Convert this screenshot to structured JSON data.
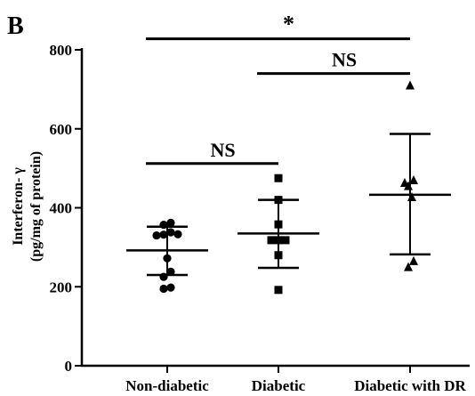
{
  "panel_label": "B",
  "chart_data": {
    "type": "scatter",
    "title": "",
    "ylabel_line1": "Interferon- γ",
    "ylabel_line2": "(pg/mg of protein)",
    "xlabel": "",
    "categories": [
      "Non-diabetic",
      "Diabetic",
      "Diabetic with DR"
    ],
    "ylim": [
      0,
      800
    ],
    "yticks": [
      0,
      200,
      400,
      600,
      800
    ],
    "grid": false,
    "series": [
      {
        "marker": "circle",
        "points": [
          {
            "dx": -0.1,
            "y": 357
          },
          {
            "dx": 0.1,
            "y": 362
          },
          {
            "dx": -0.3,
            "y": 330
          },
          {
            "dx": -0.1,
            "y": 332
          },
          {
            "dx": 0.1,
            "y": 338
          },
          {
            "dx": 0.3,
            "y": 333
          },
          {
            "dx": 0.0,
            "y": 272
          },
          {
            "dx": -0.1,
            "y": 225
          },
          {
            "dx": 0.1,
            "y": 238
          },
          {
            "dx": -0.1,
            "y": 195
          },
          {
            "dx": 0.1,
            "y": 198
          }
        ],
        "mean": 292,
        "err_low": 230,
        "err_high": 352
      },
      {
        "marker": "square",
        "points": [
          {
            "dx": 0.0,
            "y": 475
          },
          {
            "dx": 0.0,
            "y": 420
          },
          {
            "dx": 0.0,
            "y": 358
          },
          {
            "dx": -0.2,
            "y": 318
          },
          {
            "dx": 0.0,
            "y": 318
          },
          {
            "dx": 0.2,
            "y": 318
          },
          {
            "dx": 0.0,
            "y": 280
          },
          {
            "dx": 0.0,
            "y": 192
          }
        ],
        "mean": 335,
        "err_low": 248,
        "err_high": 420
      },
      {
        "marker": "triangle",
        "points": [
          {
            "dx": 0.0,
            "y": 710
          },
          {
            "dx": -0.15,
            "y": 463
          },
          {
            "dx": 0.1,
            "y": 470
          },
          {
            "dx": -0.05,
            "y": 455
          },
          {
            "dx": 0.05,
            "y": 427
          },
          {
            "dx": -0.05,
            "y": 250
          },
          {
            "dx": 0.1,
            "y": 265
          }
        ],
        "mean": 433,
        "err_low": 282,
        "err_high": 587
      }
    ],
    "annotations": [
      {
        "label": "*",
        "from": 0,
        "to": 2,
        "y": 828
      },
      {
        "label": "NS",
        "from": 1,
        "to": 2,
        "y": 740
      },
      {
        "label": "NS",
        "from": 0,
        "to": 1,
        "y": 512
      }
    ]
  }
}
